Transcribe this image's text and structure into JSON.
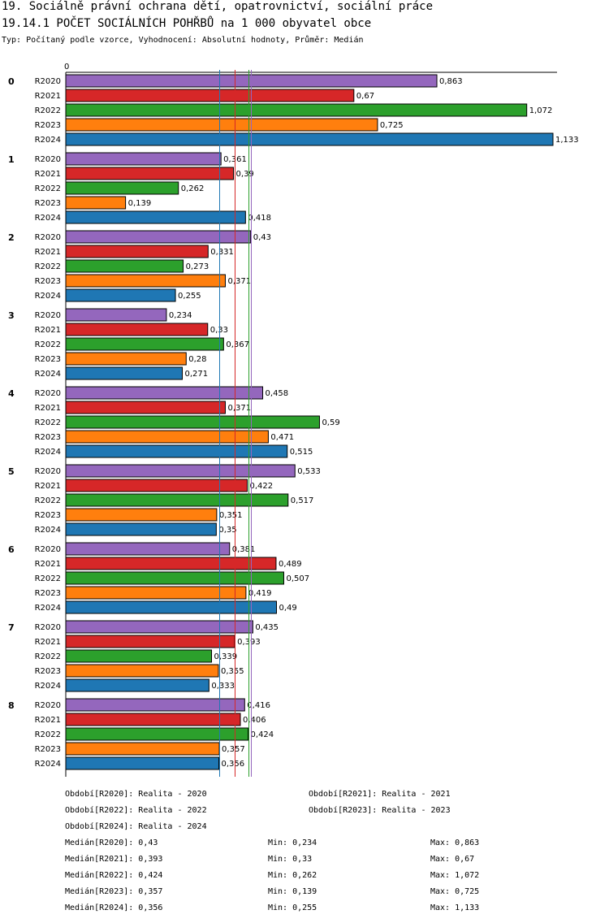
{
  "title": "19. Sociálně právní ochrana dětí, opatrovnictví, sociální práce",
  "subtitle": "19.14.1 POČET SOCIÁLNÍCH POHŘBŮ na 1 000 obyvatel obce",
  "note": "Typ: Počítaný podle vzorce, Vyhodnocení: Absolutní hodnoty, Průměr: Medián",
  "chart_data": {
    "type": "bar",
    "orientation": "horizontal",
    "axis_zero_label": "0",
    "xlim": [
      0,
      1.133
    ],
    "groups": [
      "0",
      "1",
      "2",
      "3",
      "4",
      "5",
      "6",
      "7",
      "8"
    ],
    "series": [
      {
        "name": "R2020",
        "color": "#9467bd",
        "values": [
          0.863,
          0.361,
          0.43,
          0.234,
          0.458,
          0.533,
          0.381,
          0.435,
          0.416
        ],
        "labels": [
          "0,863",
          "0,361",
          "0,43",
          "0,234",
          "0,458",
          "0,533",
          "0,381",
          "0,435",
          "0,416"
        ]
      },
      {
        "name": "R2021",
        "color": "#d62728",
        "values": [
          0.67,
          0.39,
          0.331,
          0.33,
          0.371,
          0.422,
          0.489,
          0.393,
          0.406
        ],
        "labels": [
          "0,67",
          "0,39",
          "0,331",
          "0,33",
          "0,371",
          "0,422",
          "0,489",
          "0,393",
          "0,406"
        ]
      },
      {
        "name": "R2022",
        "color": "#2ca02c",
        "values": [
          1.072,
          0.262,
          0.273,
          0.367,
          0.59,
          0.517,
          0.507,
          0.339,
          0.424
        ],
        "labels": [
          "1,072",
          "0,262",
          "0,273",
          "0,367",
          "0,59",
          "0,517",
          "0,507",
          "0,339",
          "0,424"
        ]
      },
      {
        "name": "R2023",
        "color": "#ff7f0e",
        "values": [
          0.725,
          0.139,
          0.371,
          0.28,
          0.471,
          0.351,
          0.419,
          0.355,
          0.357
        ],
        "labels": [
          "0,725",
          "0,139",
          "0,371",
          "0,28",
          "0,471",
          "0,351",
          "0,419",
          "0,355",
          "0,357"
        ]
      },
      {
        "name": "R2024",
        "color": "#1f77b4",
        "values": [
          1.133,
          0.418,
          0.255,
          0.271,
          0.515,
          0.35,
          0.49,
          0.333,
          0.356
        ],
        "labels": [
          "1,133",
          "0,418",
          "0,255",
          "0,271",
          "0,515",
          "0,35",
          "0,49",
          "0,333",
          "0,356"
        ]
      }
    ],
    "median_lines": [
      {
        "series": "R2020",
        "value": 0.43,
        "color": "#9467bd"
      },
      {
        "series": "R2021",
        "value": 0.393,
        "color": "#d62728"
      },
      {
        "series": "R2022",
        "value": 0.424,
        "color": "#2ca02c"
      },
      {
        "series": "R2023",
        "value": 0.357,
        "color": "#ff7f0e"
      },
      {
        "series": "R2024",
        "value": 0.356,
        "color": "#1f77b4"
      }
    ]
  },
  "legend": {
    "periods": [
      "Období[R2020]: Realita - 2020",
      "Období[R2021]: Realita - 2021",
      "Období[R2022]: Realita - 2022",
      "Období[R2023]: Realita - 2023",
      "Období[R2024]: Realita - 2024"
    ],
    "stats": [
      {
        "median": "Medián[R2020]: 0,43",
        "min": "Min: 0,234",
        "max": "Max: 0,863"
      },
      {
        "median": "Medián[R2021]: 0,393",
        "min": "Min: 0,33",
        "max": "Max: 0,67"
      },
      {
        "median": "Medián[R2022]: 0,424",
        "min": "Min: 0,262",
        "max": "Max: 1,072"
      },
      {
        "median": "Medián[R2023]: 0,357",
        "min": "Min: 0,139",
        "max": "Max: 0,725"
      },
      {
        "median": "Medián[R2024]: 0,356",
        "min": "Min: 0,255",
        "max": "Max: 1,133"
      }
    ]
  }
}
